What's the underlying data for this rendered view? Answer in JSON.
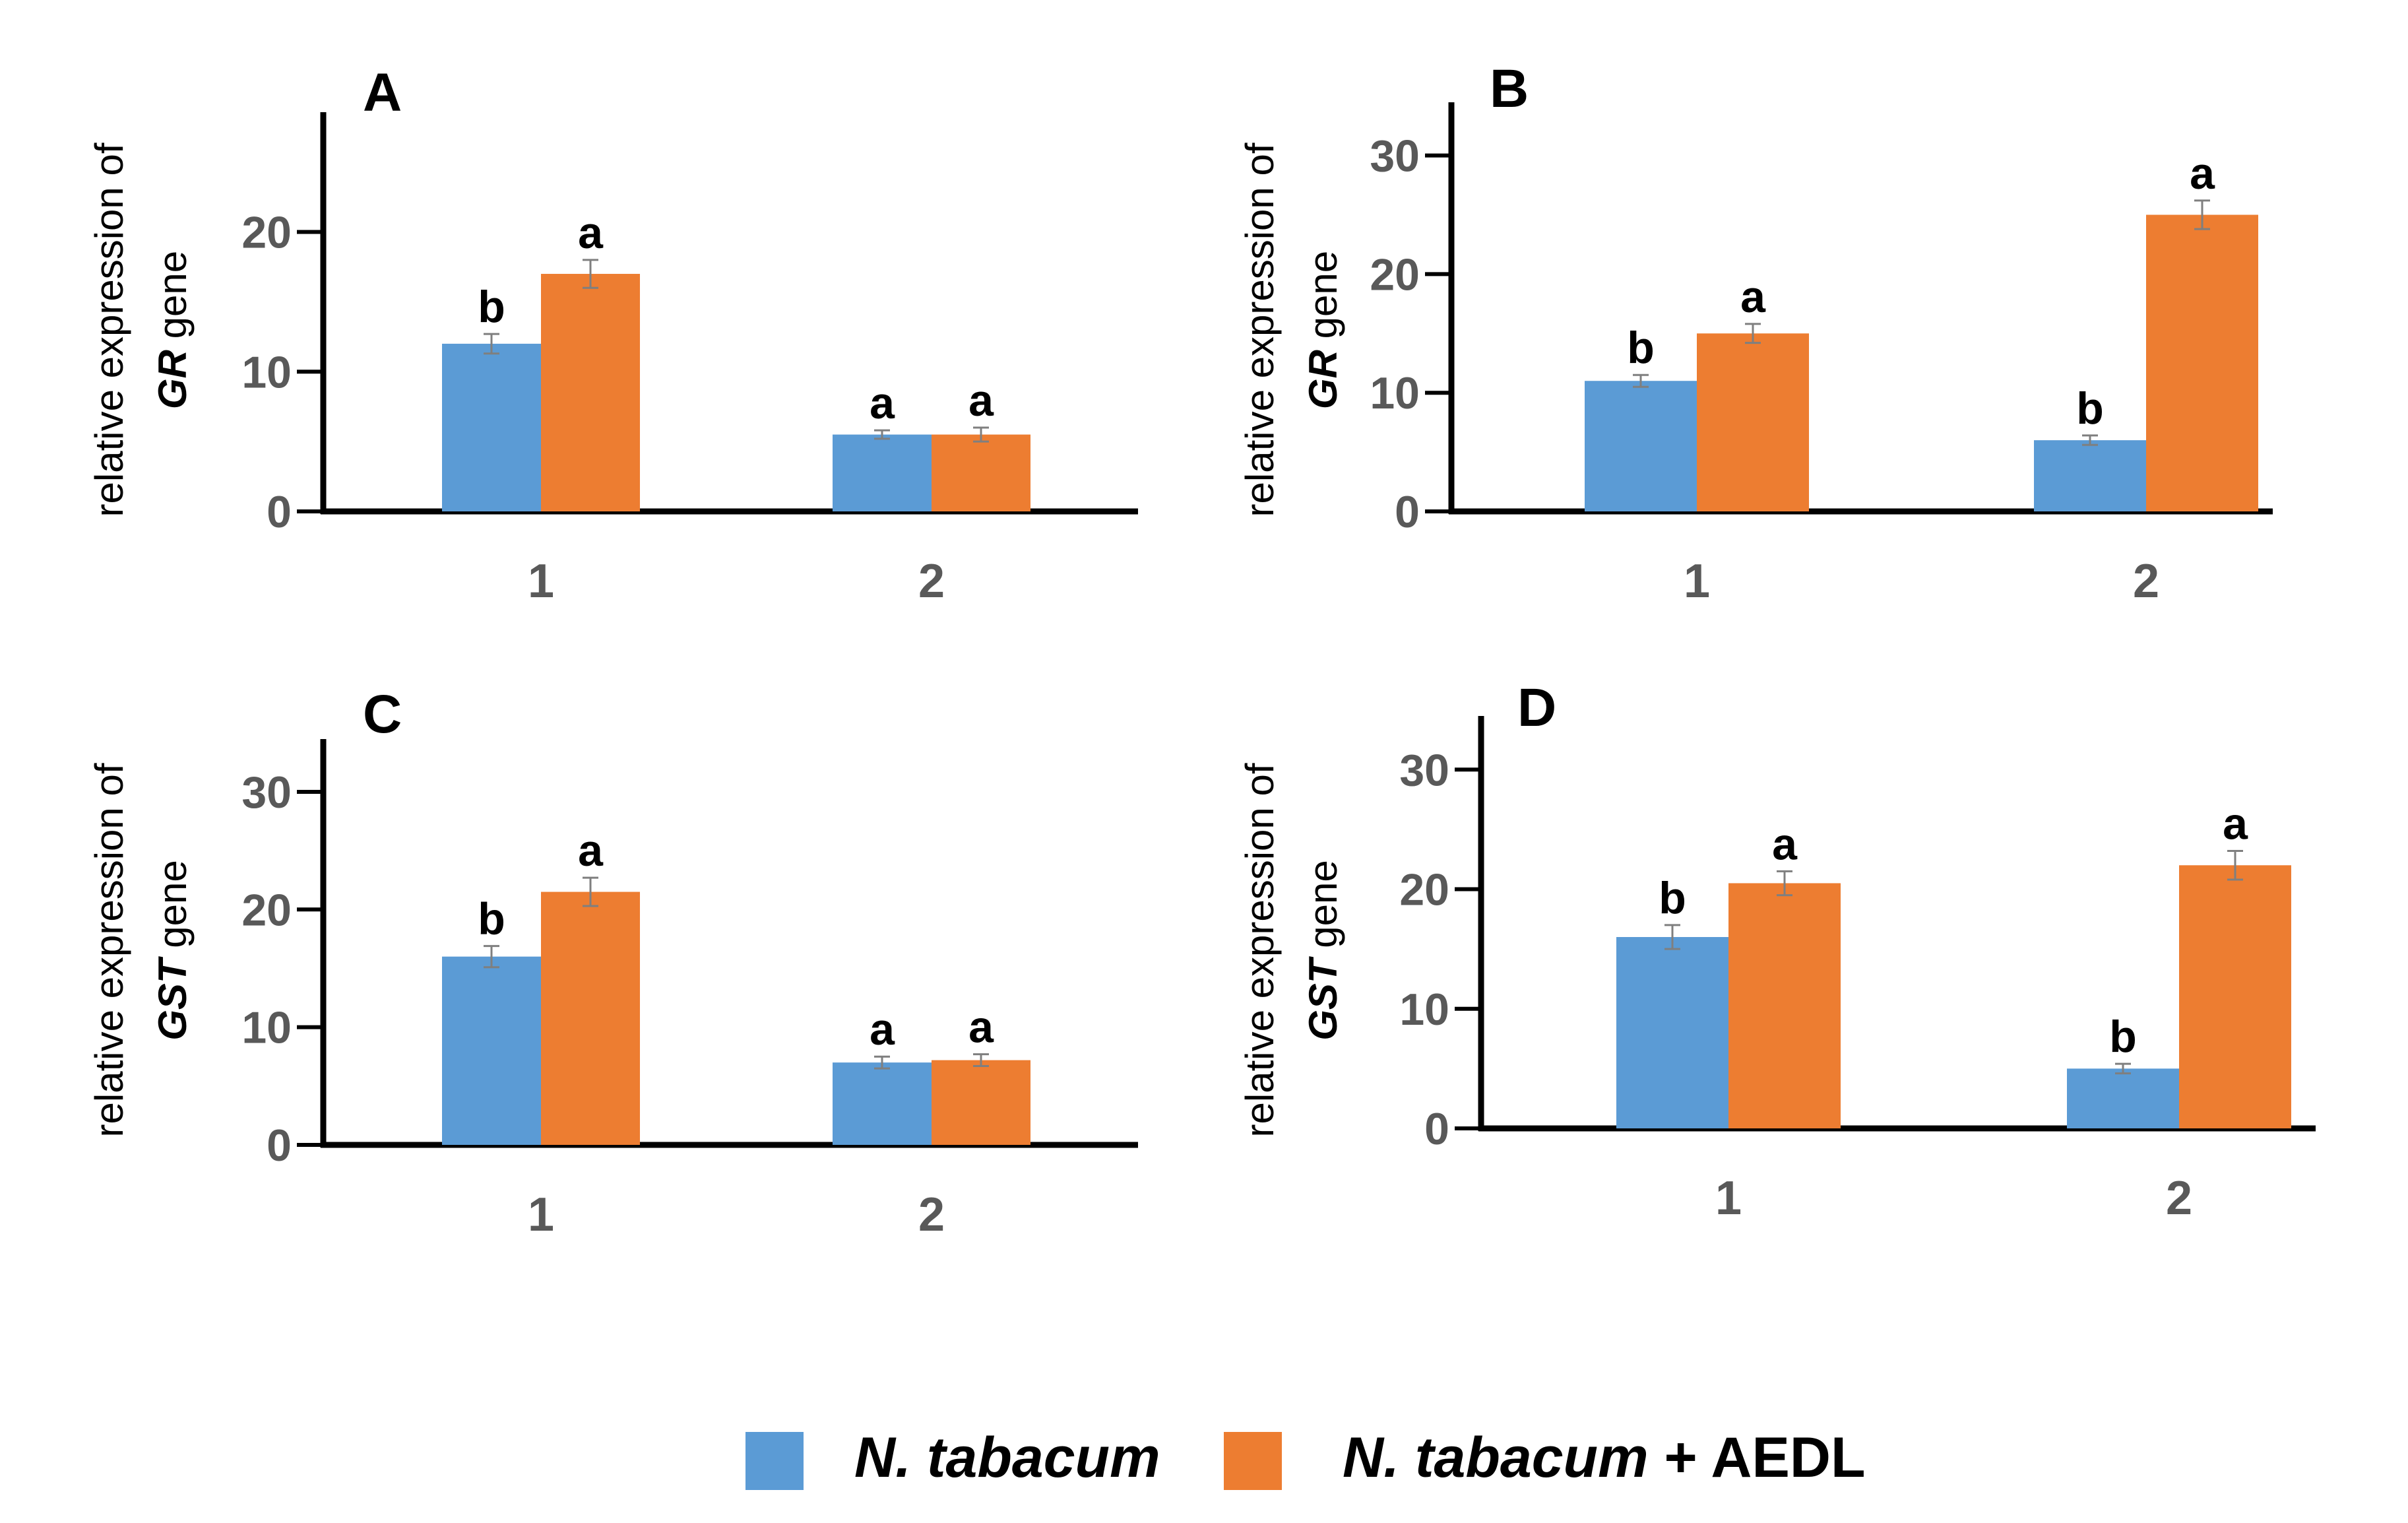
{
  "chart_data": [
    {
      "type": "bar",
      "panel": "A",
      "ylabel_line1": "relative expression of",
      "ylabel_gene": "GR",
      "ylabel_suffix": " gene",
      "ylim": [
        0,
        20
      ],
      "yticks": [
        0,
        10,
        20
      ],
      "categories": [
        "1",
        "2"
      ],
      "series": [
        {
          "values": [
            12,
            5.5
          ],
          "errors": [
            0.7,
            0.3
          ],
          "labels": [
            "b",
            "a"
          ]
        },
        {
          "values": [
            17,
            5.5
          ],
          "errors": [
            1.0,
            0.5
          ],
          "labels": [
            "a",
            "a"
          ]
        }
      ]
    },
    {
      "type": "bar",
      "panel": "B",
      "ylabel_line1": "relative expression of",
      "ylabel_gene": "GR",
      "ylabel_suffix": " gene",
      "ylim": [
        0,
        30
      ],
      "yticks": [
        0,
        10,
        20,
        30
      ],
      "categories": [
        "1",
        "2"
      ],
      "series": [
        {
          "values": [
            11,
            6
          ],
          "errors": [
            0.5,
            0.4
          ],
          "labels": [
            "b",
            "b"
          ]
        },
        {
          "values": [
            15,
            25
          ],
          "errors": [
            0.8,
            1.2
          ],
          "labels": [
            "a",
            "a"
          ]
        }
      ]
    },
    {
      "type": "bar",
      "panel": "C",
      "ylabel_line1": "relative expression of",
      "ylabel_gene": "GST",
      "ylabel_suffix": " gene",
      "ylim": [
        0,
        30
      ],
      "yticks": [
        0,
        10,
        20,
        30
      ],
      "categories": [
        "1",
        "2"
      ],
      "series": [
        {
          "values": [
            16,
            7
          ],
          "errors": [
            0.9,
            0.5
          ],
          "labels": [
            "b",
            "a"
          ]
        },
        {
          "values": [
            21.5,
            7.2
          ],
          "errors": [
            1.2,
            0.5
          ],
          "labels": [
            "a",
            "a"
          ]
        }
      ]
    },
    {
      "type": "bar",
      "panel": "D",
      "ylabel_line1": "relative expression of",
      "ylabel_gene": "GST",
      "ylabel_suffix": " gene",
      "ylim": [
        0,
        30
      ],
      "yticks": [
        0,
        10,
        20,
        30
      ],
      "categories": [
        "1",
        "2"
      ],
      "series": [
        {
          "values": [
            16,
            5
          ],
          "errors": [
            1.0,
            0.4
          ],
          "labels": [
            "b",
            "b"
          ]
        },
        {
          "values": [
            20.5,
            22
          ],
          "errors": [
            1.0,
            1.2
          ],
          "labels": [
            "a",
            "a"
          ]
        }
      ]
    }
  ],
  "legend": {
    "position": "bottom-center",
    "entries": [
      {
        "name_italic": "N. tabacum",
        "name_plain": "",
        "color": "#5b9bd5"
      },
      {
        "name_italic": "N. tabacum",
        "name_plain": " + AEDL",
        "color": "#ed7d31"
      }
    ]
  },
  "colors": {
    "series1": "#5b9bd5",
    "series2": "#ed7d31",
    "axis": "#000000",
    "tick_text": "#595959",
    "error_bar": "#7f7f7f"
  }
}
